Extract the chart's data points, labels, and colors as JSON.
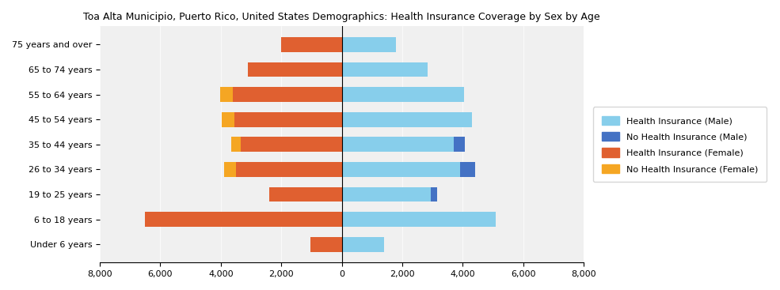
{
  "title": "Toa Alta Municipio, Puerto Rico, United States Demographics: Health Insurance Coverage by Sex by Age",
  "age_groups": [
    "Under 6 years",
    "6 to 18 years",
    "19 to 25 years",
    "26 to 34 years",
    "35 to 44 years",
    "45 to 54 years",
    "55 to 64 years",
    "65 to 74 years",
    "75 years and over"
  ],
  "health_insurance_male": [
    1400,
    5100,
    2950,
    3900,
    3700,
    4300,
    4050,
    2850,
    1800
  ],
  "no_health_insurance_male": [
    0,
    0,
    200,
    500,
    380,
    0,
    0,
    0,
    0
  ],
  "health_insurance_female": [
    1050,
    6500,
    2400,
    3500,
    3350,
    3550,
    3600,
    3100,
    2000
  ],
  "no_health_insurance_female": [
    0,
    0,
    0,
    380,
    300,
    430,
    430,
    0,
    0
  ],
  "color_health_male": "#87CEEB",
  "color_no_health_male": "#4472C4",
  "color_health_female": "#E06030",
  "color_no_health_female": "#F5A623",
  "xlim": 8000,
  "xticks": [
    -8000,
    -6000,
    -4000,
    -2000,
    0,
    2000,
    4000,
    6000,
    8000
  ],
  "xticklabels": [
    "8,000",
    "6,000",
    "4,000",
    "2,000",
    "0",
    "2,000",
    "4,000",
    "6,000",
    "8,000"
  ],
  "bar_height": 0.6,
  "legend_labels": [
    "Health Insurance (Male)",
    "No Health Insurance (Male)",
    "Health Insurance (Female)",
    "No Health Insurance (Female)"
  ],
  "legend_colors": [
    "#87CEEB",
    "#4472C4",
    "#E06030",
    "#F5A623"
  ]
}
